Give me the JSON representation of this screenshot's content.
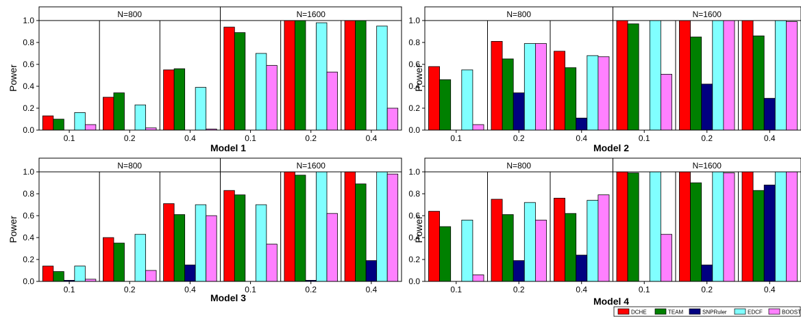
{
  "chart_data": {
    "type": "bar",
    "ylabel": "Power",
    "ylim": [
      0,
      1.0
    ],
    "yticks": [
      "0.0",
      "0.2",
      "0.4",
      "0.6",
      "0.8",
      "1.0"
    ],
    "categories": [
      "0.1",
      "0.2",
      "0.4"
    ],
    "groups": [
      "N=800",
      "N=1600"
    ],
    "methods": [
      "DCHE",
      "TEAM",
      "SNPRuler",
      "EDCF",
      "BOOST"
    ],
    "colors": {
      "DCHE": "#ff0000",
      "TEAM": "#008000",
      "SNPRuler": "#000080",
      "EDCF": "#80ffff",
      "BOOST": "#ff80ff"
    },
    "panels": [
      {
        "title": "Model 1",
        "data": {
          "N=800": [
            [
              0.13,
              0.1,
              0.0,
              0.16,
              0.05
            ],
            [
              0.3,
              0.34,
              0.0,
              0.23,
              0.02
            ],
            [
              0.55,
              0.56,
              0.0,
              0.39,
              0.01
            ]
          ],
          "N=1600": [
            [
              0.94,
              0.89,
              0.0,
              0.7,
              0.59
            ],
            [
              1.0,
              1.0,
              0.0,
              0.98,
              0.53
            ],
            [
              1.0,
              1.0,
              0.0,
              0.95,
              0.2
            ]
          ]
        }
      },
      {
        "title": "Model 2",
        "data": {
          "N=800": [
            [
              0.58,
              0.46,
              0.0,
              0.55,
              0.05
            ],
            [
              0.81,
              0.65,
              0.34,
              0.79,
              0.79
            ],
            [
              0.72,
              0.57,
              0.11,
              0.68,
              0.67
            ]
          ],
          "N=1600": [
            [
              1.0,
              0.97,
              0.0,
              1.0,
              0.51
            ],
            [
              1.0,
              0.85,
              0.42,
              1.0,
              1.0
            ],
            [
              1.0,
              0.86,
              0.29,
              1.0,
              0.99
            ]
          ]
        }
      },
      {
        "title": "Model 3",
        "data": {
          "N=800": [
            [
              0.14,
              0.09,
              0.01,
              0.14,
              0.02
            ],
            [
              0.4,
              0.35,
              0.0,
              0.43,
              0.1
            ],
            [
              0.71,
              0.61,
              0.15,
              0.7,
              0.6
            ]
          ],
          "N=1600": [
            [
              0.83,
              0.79,
              0.0,
              0.7,
              0.34
            ],
            [
              1.0,
              0.97,
              0.01,
              1.0,
              0.62
            ],
            [
              1.0,
              0.89,
              0.19,
              1.0,
              0.98
            ]
          ]
        }
      },
      {
        "title": "Model 4",
        "data": {
          "N=800": [
            [
              0.64,
              0.5,
              0.0,
              0.56,
              0.06
            ],
            [
              0.75,
              0.61,
              0.19,
              0.72,
              0.56
            ],
            [
              0.76,
              0.62,
              0.24,
              0.74,
              0.79
            ]
          ],
          "N=1600": [
            [
              1.0,
              0.99,
              0.0,
              1.0,
              0.43
            ],
            [
              1.0,
              0.9,
              0.15,
              1.0,
              0.99
            ],
            [
              1.0,
              0.83,
              0.88,
              1.0,
              1.0
            ]
          ]
        }
      }
    ],
    "legend": {
      "position": "bottom-right",
      "entries": [
        "DCHE",
        "TEAM",
        "SNPRuler",
        "EDCF",
        "BOOST"
      ]
    }
  }
}
